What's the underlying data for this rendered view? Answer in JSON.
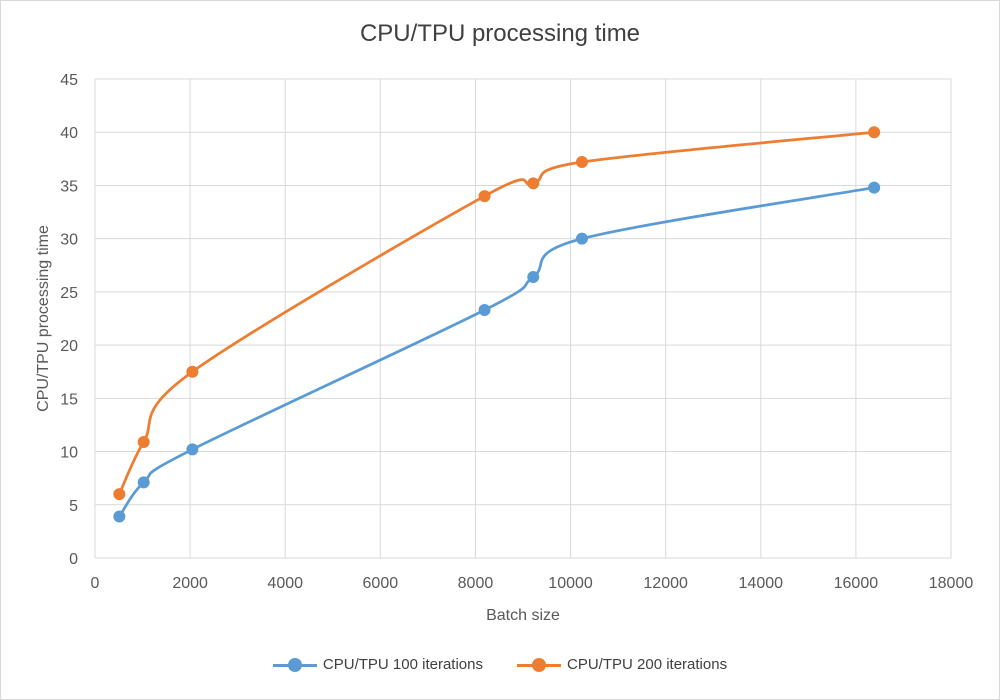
{
  "chart_data": {
    "type": "line",
    "title": "CPU/TPU processing time",
    "xlabel": "Batch size",
    "ylabel": "CPU/TPU processing time",
    "xlim": [
      0,
      18000
    ],
    "ylim": [
      0,
      45
    ],
    "xticks": [
      0,
      2000,
      4000,
      6000,
      8000,
      10000,
      12000,
      14000,
      16000,
      18000
    ],
    "yticks": [
      0,
      5,
      10,
      15,
      20,
      25,
      30,
      35,
      40,
      45
    ],
    "grid": true,
    "smooth": true,
    "legend_position": "bottom",
    "series": [
      {
        "name": "CPU/TPU 100 iterations",
        "color": "#5b9bd5",
        "x": [
          512,
          1024,
          2048,
          8192,
          9216,
          10240,
          16384
        ],
        "y": [
          3.9,
          7.1,
          10.2,
          23.3,
          26.4,
          30.0,
          34.8
        ]
      },
      {
        "name": "CPU/TPU 200 iterations",
        "color": "#ed7d31",
        "x": [
          512,
          1024,
          2048,
          8192,
          9216,
          10240,
          16384
        ],
        "y": [
          6.0,
          10.9,
          17.5,
          34.0,
          35.2,
          37.2,
          40.0
        ]
      }
    ]
  }
}
